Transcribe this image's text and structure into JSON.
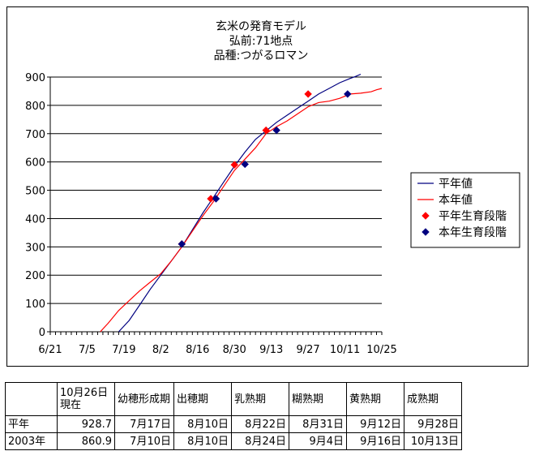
{
  "chart_data": {
    "type": "line",
    "title": [
      "玄米の発育モデル",
      "弘前:71地点",
      "品種:つがるロマン"
    ],
    "x_tick_labels": [
      "6/21",
      "7/5",
      "7/19",
      "8/2",
      "8/16",
      "8/30",
      "9/13",
      "9/27",
      "10/11",
      "10/25"
    ],
    "x_tick_days": [
      0,
      14,
      28,
      42,
      56,
      70,
      84,
      98,
      112,
      126
    ],
    "xlim_days": [
      0,
      126
    ],
    "ylim": [
      0,
      900
    ],
    "y_ticks": [
      0,
      100,
      200,
      300,
      400,
      500,
      600,
      700,
      800,
      900
    ],
    "grid": "horizontal",
    "legend_position": "right",
    "series": [
      {
        "name": "平年値",
        "kind": "line",
        "color": "#000080",
        "points": [
          [
            26,
            0
          ],
          [
            30,
            40
          ],
          [
            34,
            95
          ],
          [
            38,
            150
          ],
          [
            42,
            200
          ],
          [
            46,
            250
          ],
          [
            50,
            300
          ],
          [
            54,
            360
          ],
          [
            58,
            420
          ],
          [
            62,
            475
          ],
          [
            66,
            530
          ],
          [
            70,
            585
          ],
          [
            74,
            635
          ],
          [
            78,
            680
          ],
          [
            82,
            710
          ],
          [
            86,
            740
          ],
          [
            90,
            765
          ],
          [
            94,
            790
          ],
          [
            98,
            815
          ],
          [
            102,
            840
          ],
          [
            106,
            860
          ],
          [
            110,
            880
          ],
          [
            114,
            895
          ],
          [
            116,
            902
          ],
          [
            118,
            910
          ]
        ]
      },
      {
        "name": "本年値",
        "kind": "line",
        "color": "#ff0000",
        "points": [
          [
            19,
            0
          ],
          [
            22,
            30
          ],
          [
            26,
            75
          ],
          [
            30,
            110
          ],
          [
            34,
            145
          ],
          [
            38,
            175
          ],
          [
            42,
            205
          ],
          [
            46,
            250
          ],
          [
            50,
            300
          ],
          [
            54,
            355
          ],
          [
            58,
            410
          ],
          [
            62,
            460
          ],
          [
            66,
            515
          ],
          [
            70,
            570
          ],
          [
            74,
            610
          ],
          [
            78,
            650
          ],
          [
            82,
            700
          ],
          [
            86,
            725
          ],
          [
            90,
            745
          ],
          [
            94,
            770
          ],
          [
            98,
            795
          ],
          [
            102,
            810
          ],
          [
            106,
            815
          ],
          [
            110,
            825
          ],
          [
            114,
            840
          ],
          [
            118,
            843
          ],
          [
            122,
            848
          ],
          [
            124,
            855
          ],
          [
            126,
            860
          ]
        ]
      },
      {
        "name": "平年生育段階",
        "kind": "markers",
        "color": "#ff0000",
        "points": [
          [
            50,
            310
          ],
          [
            61,
            470
          ],
          [
            70,
            590
          ],
          [
            82,
            712
          ],
          [
            98,
            840
          ]
        ]
      },
      {
        "name": "本年生育段階",
        "kind": "markers",
        "color": "#000080",
        "points": [
          [
            50,
            310
          ],
          [
            63,
            470
          ],
          [
            74,
            592
          ],
          [
            86,
            712
          ],
          [
            113,
            840
          ]
        ]
      }
    ]
  },
  "table": {
    "headers": [
      "",
      "10月26日現在",
      "幼穂形成期",
      "出穂期",
      "乳熟期",
      "糊熟期",
      "黄熟期",
      "成熟期"
    ],
    "rows": [
      [
        "平年",
        "928.7",
        "7月17日",
        "8月10日",
        "8月22日",
        "8月31日",
        "9月12日",
        "9月28日"
      ],
      [
        "2003年",
        "860.9",
        "7月10日",
        "8月10日",
        "8月24日",
        "9月4日",
        "9月16日",
        "10月13日"
      ]
    ]
  }
}
